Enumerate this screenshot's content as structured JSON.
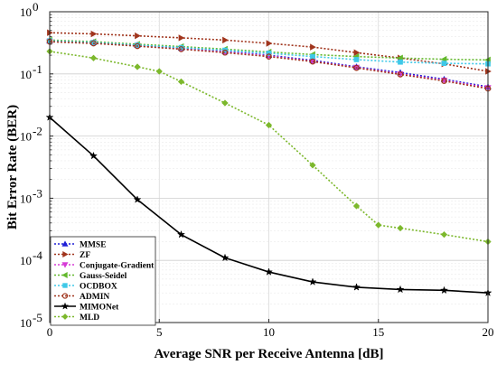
{
  "chart_data": {
    "type": "line",
    "title": "",
    "xlabel": "Average SNR per Receive Antenna [dB]",
    "ylabel": "Bit Error Rate (BER)",
    "xlim": [
      0,
      20
    ],
    "ylim": [
      1e-05,
      1
    ],
    "yscale": "log",
    "x_ticks": [
      "0",
      "5",
      "10",
      "15",
      "20"
    ],
    "y_ticks": [
      {
        "base": "10",
        "exp": "0"
      },
      {
        "base": "10",
        "exp": "-1"
      },
      {
        "base": "10",
        "exp": "-2"
      },
      {
        "base": "10",
        "exp": "-3"
      },
      {
        "base": "10",
        "exp": "-4"
      },
      {
        "base": "10",
        "exp": "-5"
      }
    ],
    "grid": true,
    "legend_position": "bottom-left",
    "series": [
      {
        "name": "MMSE",
        "color": "#1f1fd6",
        "marker": "triangle-up",
        "line": "dotted",
        "width": 1.6,
        "x": [
          0,
          2,
          4,
          6,
          8,
          10,
          12,
          14,
          16,
          18,
          20
        ],
        "y": [
          0.34,
          0.32,
          0.29,
          0.26,
          0.23,
          0.2,
          0.165,
          0.13,
          0.105,
          0.082,
          0.062
        ]
      },
      {
        "name": "ZF",
        "color": "#a0341c",
        "marker": "triangle-right",
        "line": "dotted",
        "width": 1.6,
        "x": [
          0,
          2,
          4,
          6,
          8,
          10,
          12,
          14,
          16,
          18,
          20
        ],
        "y": [
          0.46,
          0.44,
          0.41,
          0.38,
          0.35,
          0.31,
          0.27,
          0.22,
          0.18,
          0.145,
          0.11
        ]
      },
      {
        "name": "Conjugate-Gradient",
        "color": "#d63cd6",
        "marker": "triangle-down",
        "line": "dotted",
        "width": 1.6,
        "x": [
          0,
          2,
          4,
          6,
          8,
          10,
          12,
          14,
          16,
          18,
          20
        ],
        "y": [
          0.335,
          0.315,
          0.285,
          0.255,
          0.225,
          0.195,
          0.16,
          0.127,
          0.1,
          0.079,
          0.06
        ]
      },
      {
        "name": "Gauss-Seidel",
        "color": "#62b82c",
        "marker": "triangle-left",
        "line": "dotted",
        "width": 1.6,
        "x": [
          0,
          2,
          4,
          6,
          8,
          10,
          12,
          14,
          16,
          18,
          20
        ],
        "y": [
          0.35,
          0.33,
          0.3,
          0.275,
          0.25,
          0.225,
          0.205,
          0.19,
          0.18,
          0.172,
          0.168
        ]
      },
      {
        "name": "OCDBOX",
        "color": "#3ec8e8",
        "marker": "square",
        "line": "dotted",
        "width": 1.6,
        "x": [
          0,
          2,
          4,
          6,
          8,
          10,
          12,
          14,
          16,
          18,
          20
        ],
        "y": [
          0.34,
          0.32,
          0.29,
          0.265,
          0.24,
          0.215,
          0.19,
          0.17,
          0.155,
          0.148,
          0.145
        ]
      },
      {
        "name": "ADMIN",
        "color": "#a0341c",
        "marker": "circle",
        "line": "dotted",
        "width": 1.6,
        "x": [
          0,
          2,
          4,
          6,
          8,
          10,
          12,
          14,
          16,
          18,
          20
        ],
        "y": [
          0.33,
          0.31,
          0.28,
          0.25,
          0.22,
          0.19,
          0.158,
          0.125,
          0.098,
          0.077,
          0.058
        ]
      },
      {
        "name": "MIMONet",
        "color": "#000000",
        "marker": "star",
        "line": "solid",
        "width": 1.6,
        "x": [
          0,
          2,
          4,
          6,
          8,
          10,
          12,
          14,
          16,
          18,
          20
        ],
        "y": [
          0.02,
          0.0048,
          0.00095,
          0.00026,
          0.00011,
          6.5e-05,
          4.5e-05,
          3.7e-05,
          3.4e-05,
          3.3e-05,
          3e-05
        ]
      },
      {
        "name": "MLD",
        "color": "#7cb82c",
        "marker": "diamond",
        "line": "dotted",
        "width": 1.6,
        "x": [
          0,
          2,
          4,
          5,
          6,
          8,
          10,
          12,
          14,
          15,
          16,
          18,
          20
        ],
        "y": [
          0.23,
          0.18,
          0.13,
          0.11,
          0.075,
          0.034,
          0.015,
          0.0034,
          0.00075,
          0.00037,
          0.00033,
          0.00026,
          0.0002
        ]
      }
    ]
  }
}
